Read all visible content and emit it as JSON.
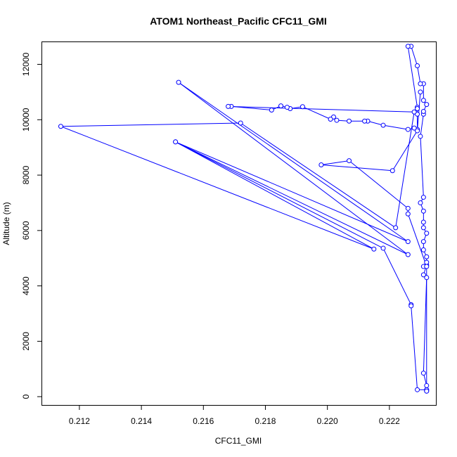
{
  "chart_data": {
    "type": "line",
    "title": "ATOM1 Northeast_Pacific CFC11_GMI",
    "xlabel": "CFC11_GMI",
    "ylabel": "Altitude (m)",
    "xlim": [
      0.2108,
      0.2235
    ],
    "ylim": [
      -300,
      12800
    ],
    "x_ticks": [
      "0.212",
      "0.214",
      "0.216",
      "0.218",
      "0.220",
      "0.222"
    ],
    "x_tick_values": [
      0.212,
      0.214,
      0.216,
      0.218,
      0.22,
      0.222
    ],
    "y_ticks": [
      "0",
      "2000",
      "4000",
      "6000",
      "8000",
      "10000",
      "12000"
    ],
    "y_tick_values": [
      0,
      2000,
      4000,
      6000,
      8000,
      10000,
      12000
    ],
    "grid": false,
    "series": [
      {
        "color": "#0000ff",
        "marker": "open-circle",
        "points": [
          [
            0.2232,
            200
          ],
          [
            0.2232,
            250
          ],
          [
            0.2232,
            400
          ],
          [
            0.2231,
            850
          ],
          [
            0.2232,
            4300
          ],
          [
            0.2231,
            4400
          ],
          [
            0.2232,
            4750
          ],
          [
            0.2231,
            4700
          ],
          [
            0.2232,
            4850
          ],
          [
            0.2232,
            5050
          ],
          [
            0.2231,
            5300
          ],
          [
            0.2231,
            5600
          ],
          [
            0.2232,
            5900
          ],
          [
            0.2231,
            6100
          ],
          [
            0.2231,
            6300
          ],
          [
            0.2231,
            6700
          ],
          [
            0.223,
            7000
          ],
          [
            0.2231,
            7200
          ],
          [
            0.223,
            9400
          ],
          [
            0.2231,
            10200
          ],
          [
            0.2231,
            10300
          ],
          [
            0.2232,
            10550
          ],
          [
            0.2231,
            10700
          ],
          [
            0.2231,
            11300
          ],
          [
            0.223,
            11300
          ],
          [
            0.2229,
            11950
          ],
          [
            0.2227,
            12650
          ],
          [
            0.2226,
            12650
          ],
          [
            0.2229,
            10450
          ],
          [
            0.2229,
            10400
          ],
          [
            0.2229,
            10200
          ],
          [
            0.2229,
            9650
          ],
          [
            0.2228,
            9700
          ],
          [
            0.2226,
            9650
          ],
          [
            0.2218,
            9800
          ],
          [
            0.2213,
            9950
          ],
          [
            0.2212,
            9950
          ],
          [
            0.2207,
            9950
          ],
          [
            0.2203,
            9980
          ],
          [
            0.2202,
            10100
          ],
          [
            0.2201,
            10020
          ],
          [
            0.2192,
            10470
          ],
          [
            0.2188,
            10400
          ],
          [
            0.2187,
            10450
          ],
          [
            0.2185,
            10500
          ],
          [
            0.2182,
            10350
          ],
          [
            0.2169,
            10480
          ],
          [
            0.2168,
            10480
          ],
          [
            0.2228,
            10280
          ],
          [
            0.2222,
            6100
          ],
          [
            0.2172,
            9880
          ],
          [
            0.2114,
            9760
          ],
          [
            0.2215,
            5330
          ],
          [
            0.2151,
            9200
          ],
          [
            0.2226,
            5600
          ],
          [
            0.2152,
            11350
          ],
          [
            0.2226,
            5130
          ],
          [
            0.2151,
            9200
          ],
          [
            0.2218,
            5360
          ],
          [
            0.2227,
            3320
          ],
          [
            0.2227,
            3280
          ],
          [
            0.2229,
            250
          ],
          [
            0.2232,
            250
          ],
          [
            0.2232,
            200
          ],
          [
            0.2232,
            4700
          ],
          [
            0.2226,
            6600
          ],
          [
            0.2226,
            6800
          ],
          [
            0.2207,
            8520
          ],
          [
            0.2198,
            8370
          ],
          [
            0.2221,
            8160
          ],
          [
            0.2229,
            9600
          ],
          [
            0.223,
            11000
          ]
        ]
      }
    ]
  }
}
